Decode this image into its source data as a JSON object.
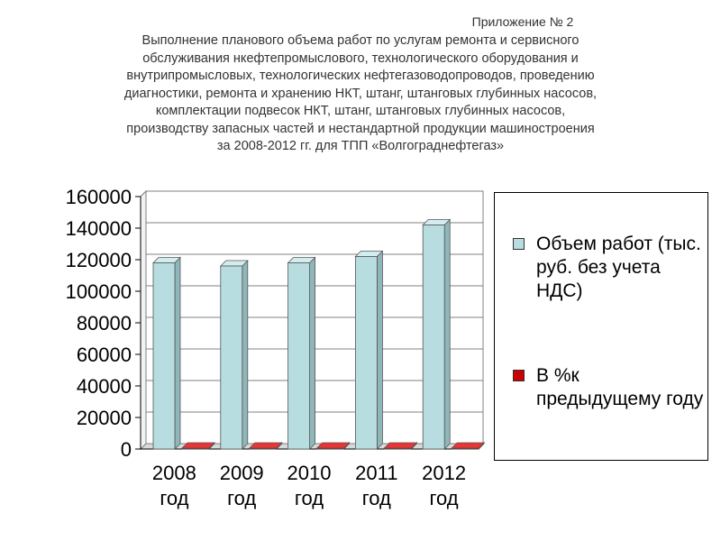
{
  "header": {
    "appendix": "Приложение № 2",
    "title": "Выполнение планового объема работ по услугам ремонта и сервисного\nобслуживания нкефтепромыслового, технологического оборудования и\nвнутрипромысловых, технологических нефтегазоводопроводов, проведению\nдиагностики, ремонта и хранению НКТ, штанг, штанговых глубинных насосов,\nкомплектации подвесок НКТ, штанг, штанговых глубинных насосов,\nпроизводству запасных частей и нестандартной продукции машиностроения\nза 2008-2012 гг. для ТПП «Волгограднефтегаз»"
  },
  "chart_data": {
    "type": "bar",
    "categories": [
      "2008 год",
      "2009 год",
      "2010 год",
      "2011 год",
      "2012 год"
    ],
    "series": [
      {
        "name": "Объем работ (тыс. руб. без учета НДС)",
        "values": [
          118000,
          116000,
          118000,
          122000,
          142000
        ],
        "color": "#b8dde0"
      },
      {
        "name": "В %к предыдущему году",
        "values": [
          100,
          98,
          102,
          103,
          116
        ],
        "color": "#cc0000"
      }
    ],
    "ylim": [
      0,
      160000
    ],
    "yticks": [
      0,
      20000,
      40000,
      60000,
      80000,
      100000,
      120000,
      140000,
      160000
    ],
    "ytick_labels": [
      "0",
      "20000",
      "40000",
      "60000",
      "80000",
      "100000",
      "120000",
      "140000",
      "160000"
    ],
    "grid": true,
    "legend_position": "right"
  },
  "legend": {
    "item1": "Объем работ (тыс. руб. без учета НДС)",
    "item2": "В %к предыдущему году"
  }
}
